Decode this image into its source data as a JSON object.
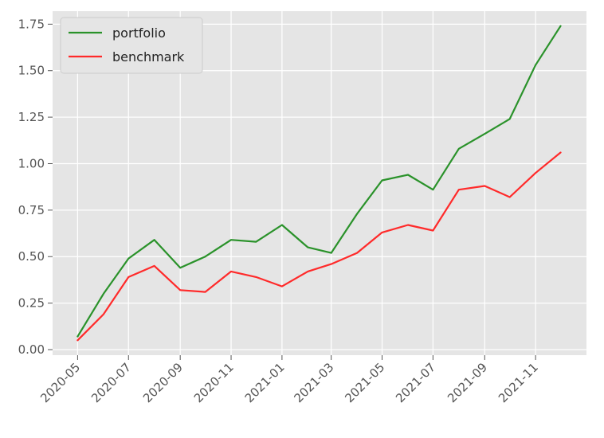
{
  "chart_data": {
    "type": "line",
    "title": "",
    "xlabel": "",
    "ylabel": "",
    "x": [
      "2020-05",
      "2020-06",
      "2020-07",
      "2020-08",
      "2020-09",
      "2020-10",
      "2020-11",
      "2020-12",
      "2021-01",
      "2021-02",
      "2021-03",
      "2021-04",
      "2021-05",
      "2021-06",
      "2021-07",
      "2021-08",
      "2021-09",
      "2021-10",
      "2021-11",
      "2021-12"
    ],
    "x_ticks": [
      "2020-05",
      "2020-07",
      "2020-09",
      "2020-11",
      "2021-01",
      "2021-03",
      "2021-05",
      "2021-07",
      "2021-09",
      "2021-11"
    ],
    "y_ticks": [
      0.0,
      0.25,
      0.5,
      0.75,
      1.0,
      1.25,
      1.5,
      1.75
    ],
    "y_tick_labels": [
      "0.00",
      "0.25",
      "0.50",
      "0.75",
      "1.00",
      "1.25",
      "1.50",
      "1.75"
    ],
    "ylim": [
      -0.03,
      1.82
    ],
    "xlim": [
      "2020-04-01",
      "2022-01-01"
    ],
    "grid": true,
    "legend_position": "top-left",
    "series": [
      {
        "name": "portfolio",
        "color": "#2a922a",
        "values": [
          0.07,
          0.3,
          0.49,
          0.59,
          0.44,
          0.5,
          0.59,
          0.58,
          0.67,
          0.55,
          0.52,
          0.73,
          0.91,
          0.94,
          0.86,
          1.08,
          1.16,
          1.24,
          1.53,
          1.74
        ]
      },
      {
        "name": "benchmark",
        "color": "#ff2a2a",
        "values": [
          0.05,
          0.19,
          0.39,
          0.45,
          0.32,
          0.31,
          0.42,
          0.39,
          0.34,
          0.42,
          0.46,
          0.52,
          0.63,
          0.67,
          0.64,
          0.86,
          0.88,
          0.82,
          0.95,
          1.06
        ]
      }
    ]
  }
}
